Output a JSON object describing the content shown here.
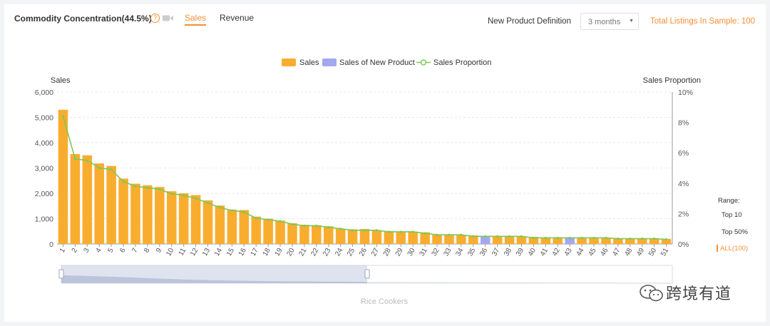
{
  "header": {
    "title": "Commodity Concentration(44.5%)",
    "tabs": [
      {
        "label": "Sales",
        "active": true
      },
      {
        "label": "Revenue",
        "active": false
      }
    ],
    "new_product_label": "New Product Definition",
    "new_product_value": "3 months",
    "total_listings": "Total Listings In Sample: 100"
  },
  "range": {
    "title": "Range:",
    "options": [
      "Top 10",
      "Top 50%",
      "ALL(100)"
    ],
    "selected": "ALL(100)"
  },
  "watermark": "跨境有道",
  "colors": {
    "sales": "#f9ad2f",
    "new_product": "#a3a8f0",
    "proportion": "#7ec855",
    "accent": "#f38e36"
  },
  "chart_data": {
    "type": "bar",
    "legend": [
      "Sales",
      "Sales of New Product",
      "Sales Proportion"
    ],
    "legend_position": "top-center",
    "ylabel": "Sales",
    "y2label": "Sales Proportion",
    "xlabel": "Rice Cookers",
    "ylim": [
      0,
      6000
    ],
    "y_ticks": [
      "0",
      "1,000",
      "2,000",
      "3,000",
      "4,000",
      "5,000",
      "6,000"
    ],
    "y2lim": [
      0,
      10
    ],
    "y2_ticks": [
      "0%",
      "2%",
      "4%",
      "6%",
      "8%",
      "10%"
    ],
    "grid": true,
    "categories": [
      "1",
      "2",
      "3",
      "4",
      "5",
      "6",
      "7",
      "8",
      "9",
      "10",
      "11",
      "12",
      "13",
      "14",
      "15",
      "16",
      "17",
      "18",
      "19",
      "20",
      "21",
      "22",
      "23",
      "24",
      "25",
      "26",
      "27",
      "28",
      "29",
      "30",
      "31",
      "32",
      "33",
      "34",
      "35",
      "36",
      "37",
      "38",
      "39",
      "40",
      "41",
      "42",
      "43",
      "44",
      "45",
      "46",
      "47",
      "48",
      "49",
      "50",
      "51"
    ],
    "new_product_indices": [
      "36",
      "43"
    ],
    "series": [
      {
        "name": "Sales",
        "values": [
          5300,
          3550,
          3500,
          3180,
          3080,
          2580,
          2380,
          2320,
          2250,
          2080,
          2000,
          1930,
          1720,
          1520,
          1360,
          1340,
          1080,
          1000,
          920,
          820,
          760,
          740,
          700,
          600,
          580,
          590,
          550,
          510,
          490,
          490,
          460,
          380,
          360,
          360,
          340,
          300,
          310,
          300,
          290,
          280,
          250,
          260,
          260,
          230,
          230,
          230,
          220,
          220,
          210,
          210,
          200
        ]
      },
      {
        "name": "Sales Proportion",
        "values": [
          8.4,
          5.6,
          5.5,
          5.0,
          4.9,
          4.1,
          3.8,
          3.7,
          3.6,
          3.3,
          3.2,
          3.0,
          2.7,
          2.4,
          2.2,
          2.1,
          1.7,
          1.6,
          1.5,
          1.3,
          1.2,
          1.2,
          1.1,
          1.0,
          0.9,
          0.9,
          0.9,
          0.8,
          0.8,
          0.8,
          0.7,
          0.6,
          0.6,
          0.6,
          0.5,
          0.5,
          0.5,
          0.5,
          0.5,
          0.4,
          0.4,
          0.4,
          0.4,
          0.4,
          0.4,
          0.4,
          0.35,
          0.35,
          0.35,
          0.35,
          0.3
        ]
      }
    ]
  }
}
